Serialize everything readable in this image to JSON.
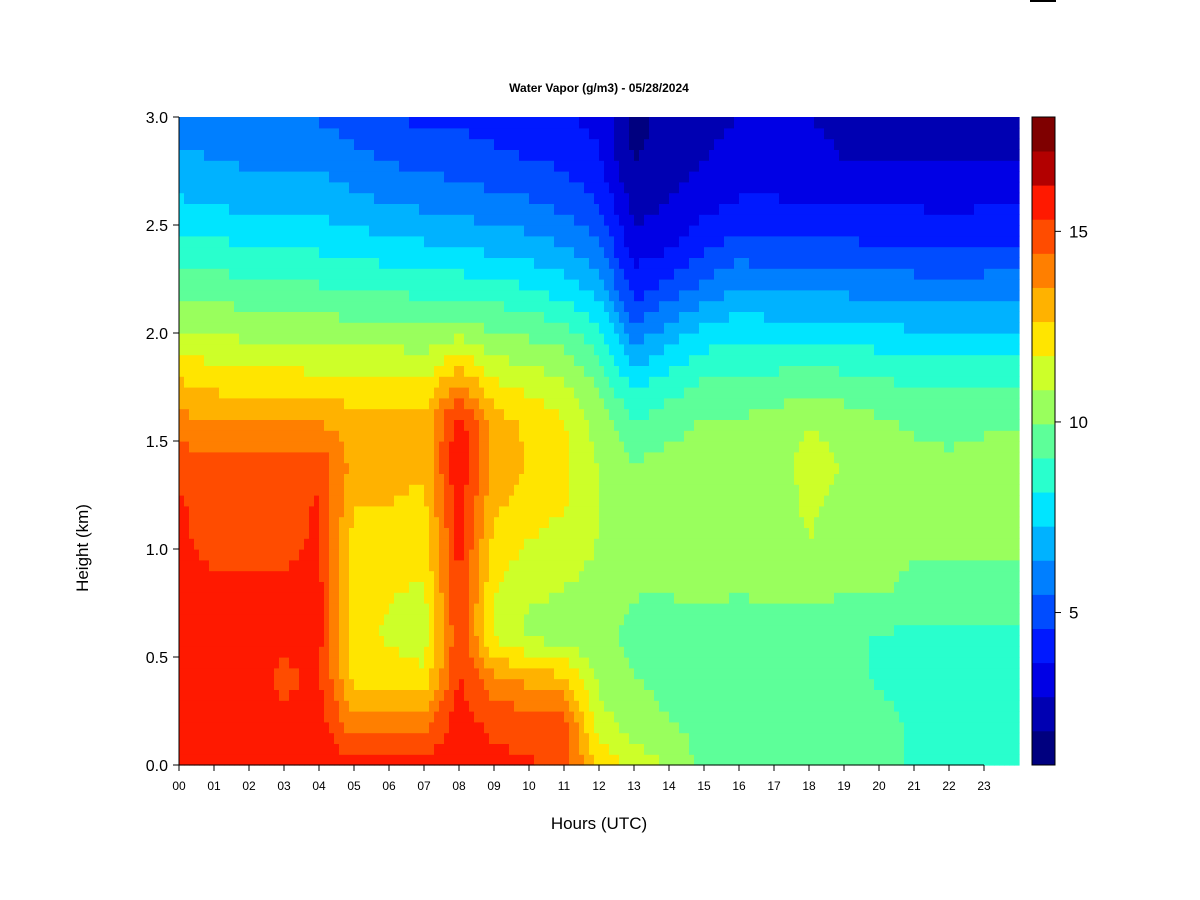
{
  "chart_data": {
    "type": "heatmap",
    "title": "Water Vapor (g/m3) - 05/28/2024",
    "xlabel": "Hours (UTC)",
    "ylabel": "Height (km)",
    "x_range": [
      0,
      24
    ],
    "ylim": [
      0,
      3.0
    ],
    "y_ticks": [
      "0.0",
      "0.5",
      "1.0",
      "1.5",
      "2.0",
      "2.5",
      "3.0"
    ],
    "x_ticks": [
      "00",
      "01",
      "02",
      "03",
      "04",
      "05",
      "06",
      "07",
      "08",
      "09",
      "10",
      "11",
      "12",
      "13",
      "14",
      "15",
      "16",
      "17",
      "18",
      "19",
      "20",
      "21",
      "22",
      "23"
    ],
    "colorbar": {
      "range": [
        1,
        18
      ],
      "levels": 17,
      "tick_values": [
        5,
        10,
        15
      ],
      "tick_labels": [
        "5",
        "10",
        "15"
      ],
      "colors": [
        "#00007f",
        "#0000b2",
        "#0000e5",
        "#0019ff",
        "#004cff",
        "#007fff",
        "#00b2ff",
        "#00e5ff",
        "#29ffcd",
        "#5dff99",
        "#99ff5d",
        "#cdff29",
        "#ffe500",
        "#ffb200",
        "#ff7f00",
        "#ff4c00",
        "#ff1900",
        "#b20000",
        "#7f0000"
      ]
    },
    "height_km": [
      0.0,
      0.2,
      0.4,
      0.6,
      0.8,
      1.0,
      1.2,
      1.4,
      1.6,
      1.8,
      2.0,
      2.2,
      2.4,
      2.6,
      2.8,
      3.0
    ],
    "hours": [
      0,
      1,
      2,
      3,
      4,
      5,
      6,
      7,
      8,
      9,
      10,
      11,
      12,
      13,
      14,
      15,
      16,
      17,
      18,
      19,
      20,
      21,
      22,
      23
    ],
    "values": [
      [
        16.2,
        16.0,
        15.8,
        15.6,
        15.6,
        15.4,
        15.4,
        15.0,
        13.8,
        12.5,
        11.0,
        9.8,
        8.6,
        7.4,
        6.6,
        6.0
      ],
      [
        16.0,
        15.8,
        15.6,
        15.4,
        15.4,
        15.2,
        15.0,
        14.6,
        13.4,
        12.2,
        10.8,
        9.6,
        8.4,
        7.2,
        6.4,
        5.8
      ],
      [
        16.0,
        15.8,
        15.6,
        15.4,
        15.4,
        15.2,
        15.0,
        14.6,
        13.4,
        12.0,
        10.6,
        9.4,
        8.2,
        7.0,
        6.2,
        5.6
      ],
      [
        15.8,
        15.4,
        15.2,
        15.4,
        15.4,
        15.2,
        15.0,
        14.8,
        13.6,
        12.0,
        10.6,
        9.4,
        8.2,
        7.0,
        6.2,
        5.6
      ],
      [
        16.0,
        15.8,
        15.4,
        15.6,
        15.6,
        15.4,
        15.4,
        15.0,
        13.4,
        11.8,
        10.6,
        9.2,
        8.0,
        7.0,
        6.2,
        5.4
      ],
      [
        15.6,
        13.8,
        12.4,
        12.0,
        12.0,
        12.2,
        12.6,
        13.2,
        13.0,
        11.8,
        10.4,
        9.0,
        7.8,
        6.6,
        5.8,
        5.0
      ],
      [
        15.8,
        14.2,
        12.2,
        11.6,
        11.8,
        12.0,
        12.6,
        13.0,
        13.0,
        11.8,
        10.4,
        9.0,
        7.6,
        6.4,
        5.4,
        4.6
      ],
      [
        15.6,
        14.0,
        12.0,
        11.2,
        11.6,
        12.0,
        12.4,
        12.8,
        12.8,
        11.6,
        10.2,
        8.8,
        7.4,
        6.2,
        5.2,
        4.4
      ],
      [
        16.2,
        15.8,
        15.4,
        15.2,
        15.4,
        15.6,
        15.8,
        16.2,
        15.8,
        13.2,
        10.6,
        8.8,
        7.2,
        6.0,
        5.0,
        4.4
      ],
      [
        15.6,
        15.0,
        13.8,
        11.6,
        11.8,
        12.2,
        12.8,
        13.2,
        13.0,
        11.6,
        10.0,
        8.6,
        7.0,
        5.8,
        4.8,
        4.2
      ],
      [
        15.4,
        15.0,
        13.2,
        10.6,
        11.0,
        11.6,
        12.2,
        12.6,
        12.4,
        11.2,
        9.8,
        8.2,
        6.8,
        5.6,
        4.6,
        4.0
      ],
      [
        15.0,
        14.8,
        12.8,
        10.4,
        10.8,
        11.2,
        11.8,
        12.0,
        11.8,
        10.8,
        9.4,
        7.8,
        6.4,
        5.2,
        4.4,
        3.8
      ],
      [
        12.4,
        11.2,
        10.6,
        10.2,
        10.6,
        10.8,
        10.8,
        10.8,
        10.4,
        9.6,
        8.4,
        7.0,
        5.6,
        4.6,
        3.8,
        3.4
      ],
      [
        11.4,
        10.4,
        10.0,
        9.6,
        10.0,
        10.2,
        10.2,
        10.0,
        9.0,
        7.6,
        5.8,
        4.2,
        3.2,
        2.4,
        1.8,
        1.6
      ],
      [
        10.8,
        10.0,
        9.6,
        9.4,
        10.0,
        10.2,
        10.4,
        10.2,
        9.6,
        8.4,
        6.8,
        5.0,
        3.6,
        2.8,
        2.4,
        2.2
      ],
      [
        9.6,
        9.6,
        9.4,
        9.2,
        10.2,
        10.2,
        10.4,
        10.4,
        10.0,
        9.0,
        7.6,
        5.8,
        4.4,
        3.4,
        2.8,
        2.6
      ],
      [
        9.4,
        9.4,
        9.2,
        9.2,
        10.0,
        10.2,
        10.4,
        10.4,
        10.0,
        9.2,
        8.0,
        6.4,
        5.0,
        3.8,
        3.0,
        2.8
      ],
      [
        9.4,
        9.4,
        9.2,
        9.2,
        10.2,
        10.4,
        10.4,
        10.4,
        10.2,
        9.2,
        7.8,
        6.2,
        4.8,
        3.8,
        3.0,
        2.8
      ],
      [
        9.6,
        9.6,
        9.4,
        9.4,
        10.2,
        10.8,
        11.0,
        11.2,
        10.8,
        9.4,
        7.8,
        6.2,
        4.8,
        3.6,
        3.0,
        2.8
      ],
      [
        9.4,
        9.4,
        9.2,
        9.2,
        10.0,
        10.4,
        10.6,
        10.8,
        10.4,
        9.2,
        7.8,
        6.2,
        4.8,
        3.6,
        2.8,
        2.6
      ],
      [
        9.2,
        9.2,
        9.0,
        9.0,
        10.0,
        10.2,
        10.4,
        10.4,
        10.0,
        9.0,
        7.6,
        6.0,
        4.6,
        3.6,
        2.8,
        2.6
      ],
      [
        9.0,
        9.0,
        8.8,
        8.8,
        9.8,
        10.0,
        10.2,
        10.2,
        9.8,
        8.8,
        7.4,
        6.0,
        4.6,
        3.6,
        2.8,
        2.6
      ],
      [
        8.8,
        8.8,
        8.8,
        8.6,
        9.8,
        10.0,
        10.2,
        10.0,
        9.8,
        8.6,
        7.4,
        5.8,
        4.6,
        3.4,
        2.8,
        2.6
      ],
      [
        9.0,
        9.0,
        8.8,
        8.8,
        9.8,
        10.0,
        10.2,
        10.2,
        9.8,
        8.8,
        7.4,
        6.0,
        4.6,
        3.6,
        2.8,
        2.6
      ]
    ]
  }
}
